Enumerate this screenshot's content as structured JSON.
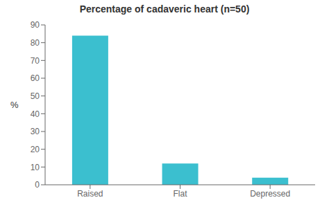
{
  "chart_data": {
    "type": "bar",
    "title": "Percentage of cadaveric heart (n=50)",
    "ylabel": "%",
    "categories": [
      "Raised",
      "Flat",
      "Depressed"
    ],
    "values": [
      84,
      12,
      4
    ],
    "color": "#3bbfcf",
    "ylim": [
      0,
      90
    ],
    "yticks": [
      0,
      10,
      20,
      30,
      40,
      50,
      60,
      70,
      80,
      90
    ],
    "grid": false,
    "legend": false
  }
}
